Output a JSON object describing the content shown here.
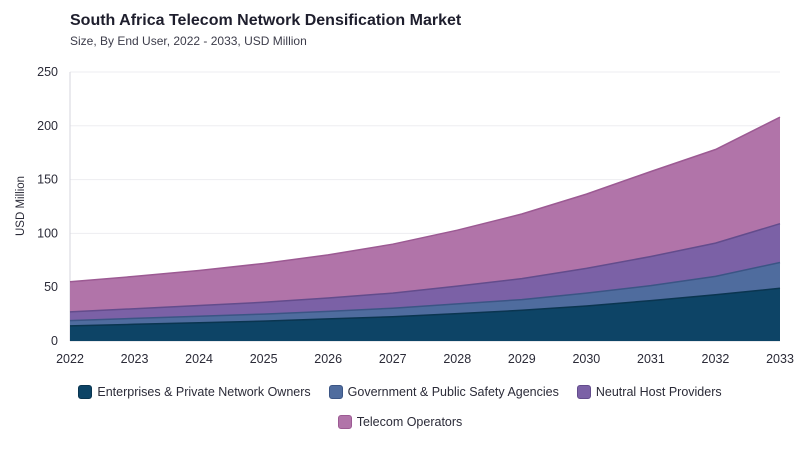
{
  "chart_data": {
    "type": "area",
    "stacked": true,
    "title": "South Africa Telecom Network Densification Market",
    "subtitle": "Size, By End User, 2022 - 2033, USD Million",
    "ylabel": "USD Million",
    "xlabel": "",
    "ylim": [
      0,
      250
    ],
    "yticks": [
      0,
      50,
      100,
      150,
      200,
      250
    ],
    "x": [
      "2022",
      "2023",
      "2024",
      "2025",
      "2026",
      "2027",
      "2028",
      "2029",
      "2030",
      "2031",
      "2032",
      "2033"
    ],
    "grid": true,
    "legend_position": "bottom",
    "series": [
      {
        "name": "Enterprises & Private Network Owners",
        "color": "#0d4466",
        "edge": "#0a3550",
        "values": [
          14,
          15.5,
          17,
          18.5,
          20.5,
          22.5,
          25.5,
          28.5,
          32.5,
          37.5,
          43,
          49
        ]
      },
      {
        "name": "Government & Public Safety Agencies",
        "color": "#4f6c9e",
        "edge": "#3b5585",
        "values": [
          5,
          5.5,
          6,
          6.5,
          7,
          8,
          9,
          10,
          12,
          14,
          17,
          24
        ]
      },
      {
        "name": "Neutral Host Providers",
        "color": "#7b61a6",
        "edge": "#634c8c",
        "values": [
          8,
          9,
          10,
          11,
          12.5,
          14,
          16.5,
          19.5,
          23,
          27,
          31,
          36
        ]
      },
      {
        "name": "Telecom Operators",
        "color": "#b174a9",
        "edge": "#9c5a93",
        "values": [
          28,
          30,
          32.5,
          36,
          40,
          45.5,
          52,
          60,
          69,
          79,
          87,
          99
        ]
      }
    ]
  }
}
